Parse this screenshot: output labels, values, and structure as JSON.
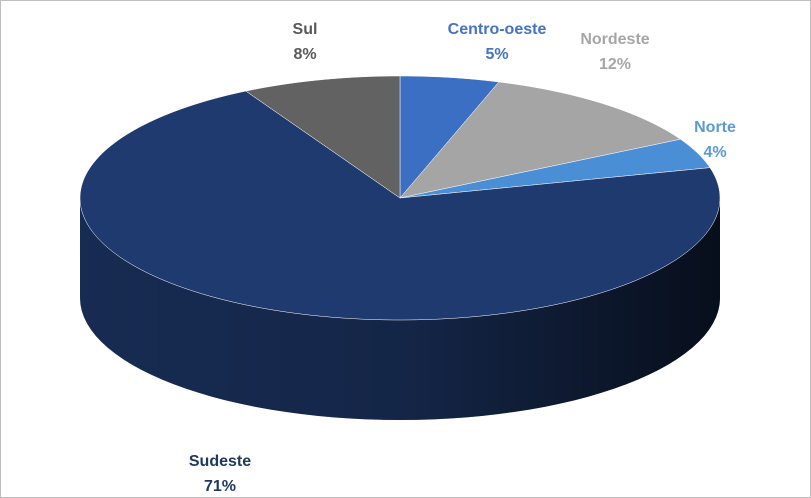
{
  "chart_data": {
    "type": "pie",
    "categories": [
      "Centro-oeste",
      "Nordeste",
      "Norte",
      "Sudeste",
      "Sul"
    ],
    "values": [
      5,
      12,
      4,
      71,
      8
    ],
    "value_labels": [
      "5%",
      "12%",
      "4%",
      "71%",
      "8%"
    ],
    "colors": [
      "#3a6fc4",
      "#a5a5a5",
      "#4a8fd6",
      "#1f3a6e",
      "#626262"
    ],
    "label_colors": [
      "#4472c4",
      "#a6a6a6",
      "#5b9bd5",
      "#1f3864",
      "#595959"
    ]
  }
}
